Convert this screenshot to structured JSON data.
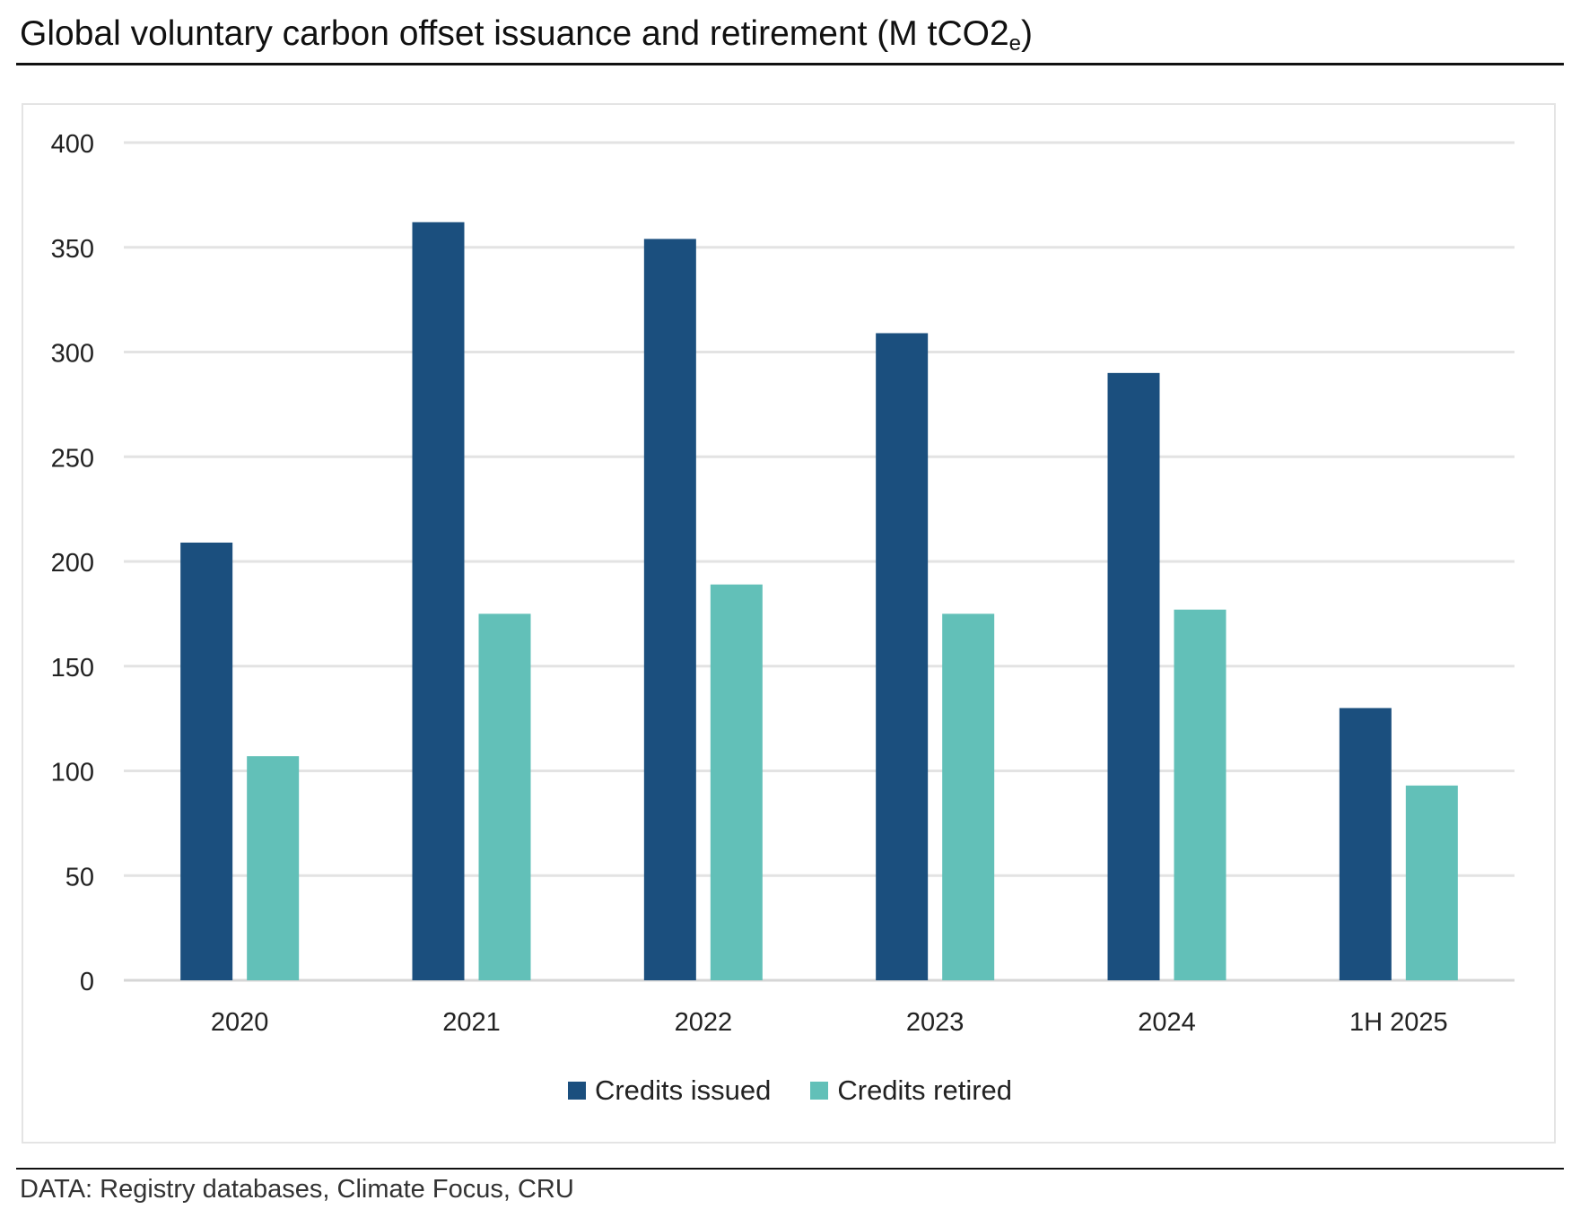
{
  "title": "Global voluntary carbon offset issuance and retirement (M tCO2",
  "title_subscript": "e",
  "title_close": ")",
  "source": "DATA: Registry databases, Climate Focus, CRU",
  "colors": {
    "issued": "#1b4f7e",
    "retired": "#62c0b8",
    "grid": "#e3e3e3"
  },
  "chart_data": {
    "type": "bar",
    "title": "Global voluntary carbon offset issuance and retirement (M tCO2e)",
    "categories": [
      "2020",
      "2021",
      "2022",
      "2023",
      "2024",
      "1H 2025"
    ],
    "series": [
      {
        "name": "Credits issued",
        "values": [
          209,
          362,
          354,
          309,
          290,
          130
        ]
      },
      {
        "name": "Credits retired",
        "values": [
          107,
          175,
          189,
          175,
          177,
          93
        ]
      }
    ],
    "ylim": [
      0,
      400
    ],
    "yticks": [
      0,
      50,
      100,
      150,
      200,
      250,
      300,
      350,
      400
    ],
    "grid": true,
    "legend_position": "bottom"
  }
}
